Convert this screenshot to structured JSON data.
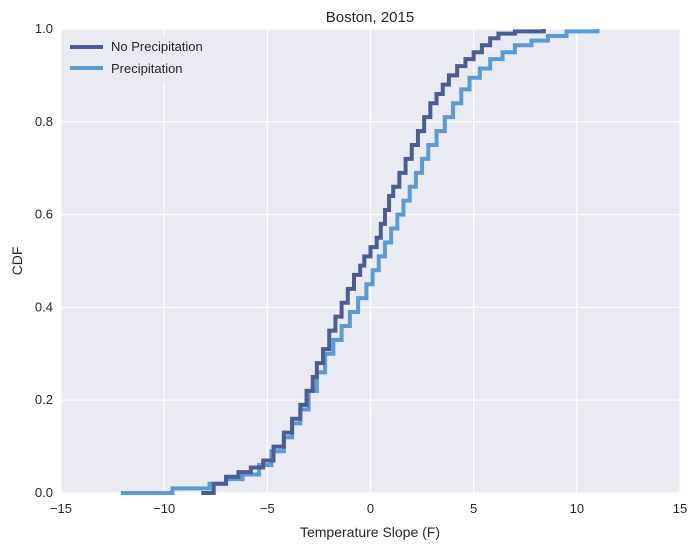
{
  "chart_data": {
    "type": "line",
    "step": true,
    "title": "Boston, 2015",
    "xlabel": "Temperature Slope (F)",
    "ylabel": "CDF",
    "xlim": [
      -15,
      15
    ],
    "ylim": [
      0,
      1.0
    ],
    "xticks": [
      -15,
      -10,
      -5,
      0,
      5,
      10,
      15
    ],
    "xtick_labels": [
      "−15",
      "−10",
      "−5",
      "0",
      "5",
      "10",
      "15"
    ],
    "yticks": [
      0,
      0.2,
      0.4,
      0.6,
      0.8,
      1.0
    ],
    "ytick_labels": [
      "0.0",
      "0.2",
      "0.4",
      "0.6",
      "0.8",
      "1.0"
    ],
    "grid": true,
    "background_color": "#eaeaf2",
    "legend": {
      "placement": "top-left"
    },
    "series": [
      {
        "name": "No Precipitation",
        "color": "#4c5d93",
        "x": [
          -8.2,
          -7.6,
          -7.0,
          -6.4,
          -5.8,
          -5.2,
          -4.7,
          -4.2,
          -3.8,
          -3.4,
          -3.1,
          -2.8,
          -2.6,
          -2.3,
          -2.0,
          -1.7,
          -1.4,
          -1.1,
          -0.8,
          -0.5,
          -0.3,
          0.0,
          0.3,
          0.5,
          0.7,
          0.9,
          1.1,
          1.4,
          1.7,
          2.0,
          2.3,
          2.6,
          2.9,
          3.2,
          3.5,
          3.8,
          4.2,
          4.6,
          5.0,
          5.4,
          5.8,
          6.2,
          7.0,
          8.4
        ],
        "y": [
          0.0,
          0.02,
          0.035,
          0.045,
          0.055,
          0.07,
          0.1,
          0.13,
          0.16,
          0.19,
          0.22,
          0.25,
          0.28,
          0.31,
          0.35,
          0.38,
          0.41,
          0.44,
          0.47,
          0.49,
          0.51,
          0.53,
          0.55,
          0.58,
          0.61,
          0.64,
          0.66,
          0.69,
          0.72,
          0.75,
          0.78,
          0.81,
          0.84,
          0.86,
          0.88,
          0.9,
          0.92,
          0.935,
          0.95,
          0.965,
          0.98,
          0.99,
          0.995,
          1.0
        ]
      },
      {
        "name": "Precipitation",
        "color": "#5b9bd5",
        "x": [
          -12.1,
          -9.6,
          -7.8,
          -7.0,
          -6.2,
          -5.4,
          -4.8,
          -4.2,
          -3.8,
          -3.4,
          -3.0,
          -2.6,
          -2.2,
          -1.8,
          -1.4,
          -1.0,
          -0.6,
          -0.2,
          0.1,
          0.4,
          0.7,
          1.0,
          1.3,
          1.6,
          1.9,
          2.2,
          2.5,
          2.8,
          3.2,
          3.6,
          4.0,
          4.4,
          4.8,
          5.3,
          5.8,
          6.4,
          7.0,
          7.8,
          8.6,
          9.5,
          11.0
        ],
        "y": [
          0.0,
          0.01,
          0.02,
          0.03,
          0.04,
          0.06,
          0.09,
          0.12,
          0.15,
          0.18,
          0.22,
          0.26,
          0.3,
          0.33,
          0.36,
          0.39,
          0.42,
          0.45,
          0.48,
          0.51,
          0.54,
          0.57,
          0.6,
          0.63,
          0.66,
          0.69,
          0.72,
          0.75,
          0.78,
          0.81,
          0.84,
          0.87,
          0.895,
          0.915,
          0.935,
          0.95,
          0.965,
          0.975,
          0.985,
          0.995,
          1.0
        ]
      }
    ]
  }
}
